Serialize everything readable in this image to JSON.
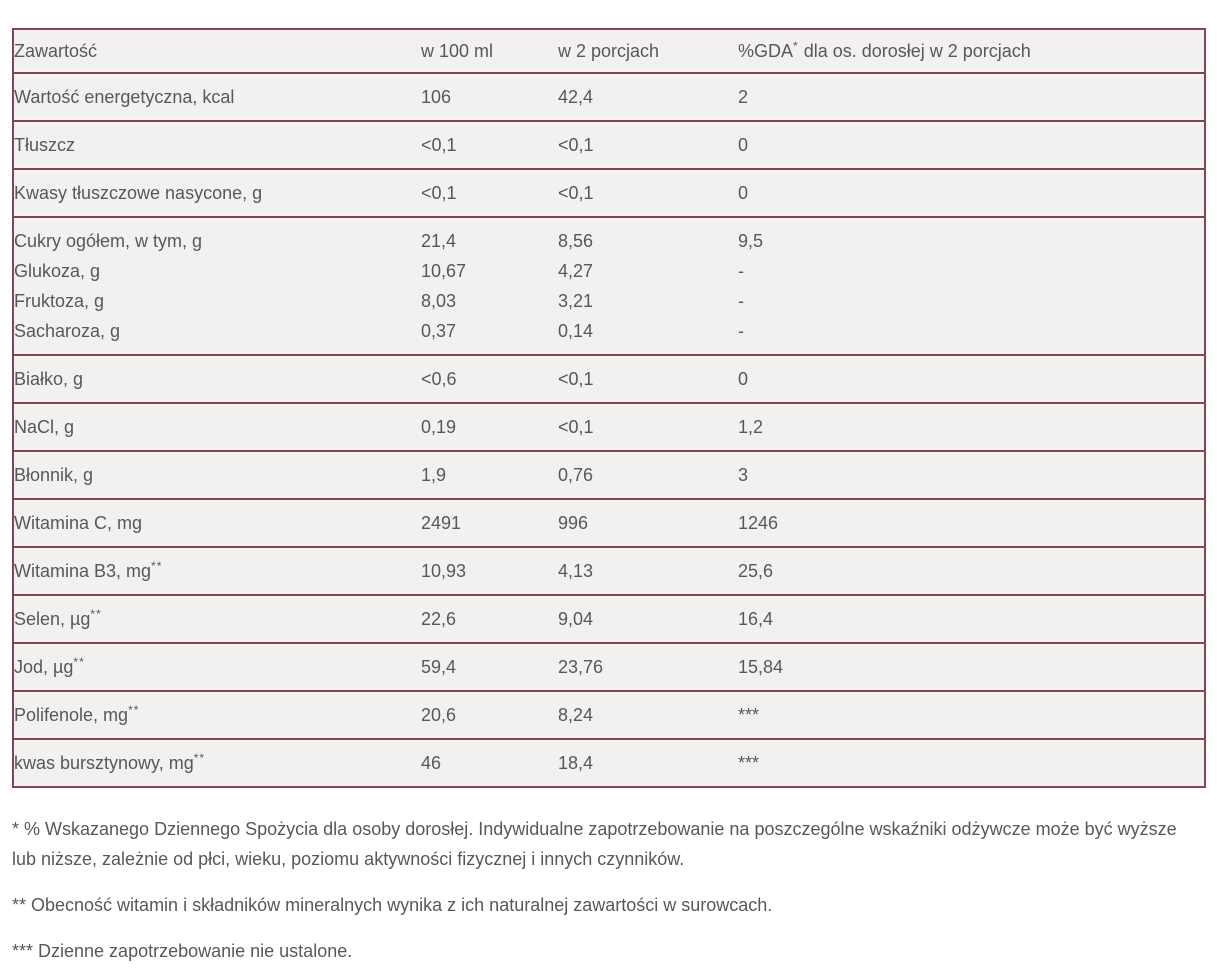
{
  "colors": {
    "border": "#84464e",
    "cell_background": "#f2f1ef",
    "cell_edge_tint": "#f9f4f3",
    "text": "#57585b",
    "page_background": "#ffffff"
  },
  "chart_data": {
    "type": "table",
    "title": "",
    "legend_position": "none",
    "columns": [
      "Zawartość",
      "w 100 ml",
      "w 2 porcjach",
      "%GDA* dla os. dorosłej w 2 porcjach"
    ],
    "header": {
      "col1": "Zawartość",
      "col2": "w 100 ml",
      "col3": "w 2 porcjach",
      "col4_prefix": "%GDA",
      "col4_sup": "*",
      "col4_suffix": " dla os. dorosłej w 2 porcjach"
    },
    "rows": [
      {
        "lines": [
          {
            "label": "Wartość energetyczna, kcal",
            "sup": "",
            "v100": "106",
            "v2": "42,4",
            "gda": "2"
          }
        ]
      },
      {
        "lines": [
          {
            "label": "Tłuszcz",
            "sup": "",
            "v100": "<0,1",
            "v2": "<0,1",
            "gda": "0"
          }
        ]
      },
      {
        "lines": [
          {
            "label": "Kwasy tłuszczowe nasycone, g",
            "sup": "",
            "v100": "<0,1",
            "v2": "<0,1",
            "gda": "0"
          }
        ]
      },
      {
        "lines": [
          {
            "label": "Cukry ogółem, w tym, g",
            "sup": "",
            "v100": "21,4",
            "v2": "8,56",
            "gda": "9,5"
          },
          {
            "label": "Glukoza, g",
            "sup": "",
            "v100": "10,67",
            "v2": "4,27",
            "gda": "-"
          },
          {
            "label": "Fruktoza, g",
            "sup": "",
            "v100": "8,03",
            "v2": "3,21",
            "gda": "-"
          },
          {
            "label": "Sacharoza, g",
            "sup": "",
            "v100": "0,37",
            "v2": "0,14",
            "gda": "-"
          }
        ]
      },
      {
        "lines": [
          {
            "label": "Białko, g",
            "sup": "",
            "v100": "<0,6",
            "v2": "<0,1",
            "gda": "0"
          }
        ]
      },
      {
        "lines": [
          {
            "label": "NaCl, g",
            "sup": "",
            "v100": "0,19",
            "v2": "<0,1",
            "gda": "1,2"
          }
        ]
      },
      {
        "lines": [
          {
            "label": "Błonnik, g",
            "sup": "",
            "v100": "1,9",
            "v2": "0,76",
            "gda": "3"
          }
        ]
      },
      {
        "lines": [
          {
            "label": "Witamina C, mg",
            "sup": "",
            "v100": "2491",
            "v2": "996",
            "gda": "1246"
          }
        ]
      },
      {
        "lines": [
          {
            "label": "Witamina B3, mg",
            "sup": "**",
            "v100": "10,93",
            "v2": "4,13",
            "gda": "25,6"
          }
        ]
      },
      {
        "lines": [
          {
            "label": "Selen, µg",
            "sup": "**",
            "v100": "22,6",
            "v2": "9,04",
            "gda": "16,4"
          }
        ]
      },
      {
        "lines": [
          {
            "label": "Jod, µg",
            "sup": "**",
            "v100": "59,4",
            "v2": "23,76",
            "gda": "15,84"
          }
        ]
      },
      {
        "lines": [
          {
            "label": "Polifenole, mg",
            "sup": "**",
            "v100": "20,6",
            "v2": "8,24",
            "gda": "***"
          }
        ]
      },
      {
        "lines": [
          {
            "label": "kwas bursztynowy, mg",
            "sup": "**",
            "v100": "46",
            "v2": "18,4",
            "gda": "***"
          }
        ]
      }
    ],
    "footnotes": [
      "* % Wskazanego Dziennego Spożycia dla osoby dorosłej. Indywidualne zapotrzebowanie na poszczególne wskaźniki odżywcze może być wyższe lub niższe, zależnie od płci, wieku, poziomu aktywności fizycznej i innych czynników.",
      "** Obecność witamin i składników mineralnych wynika z ich naturalnej zawartości w surowcach.",
      "*** Dzienne zapotrzebowanie nie ustalone."
    ]
  }
}
